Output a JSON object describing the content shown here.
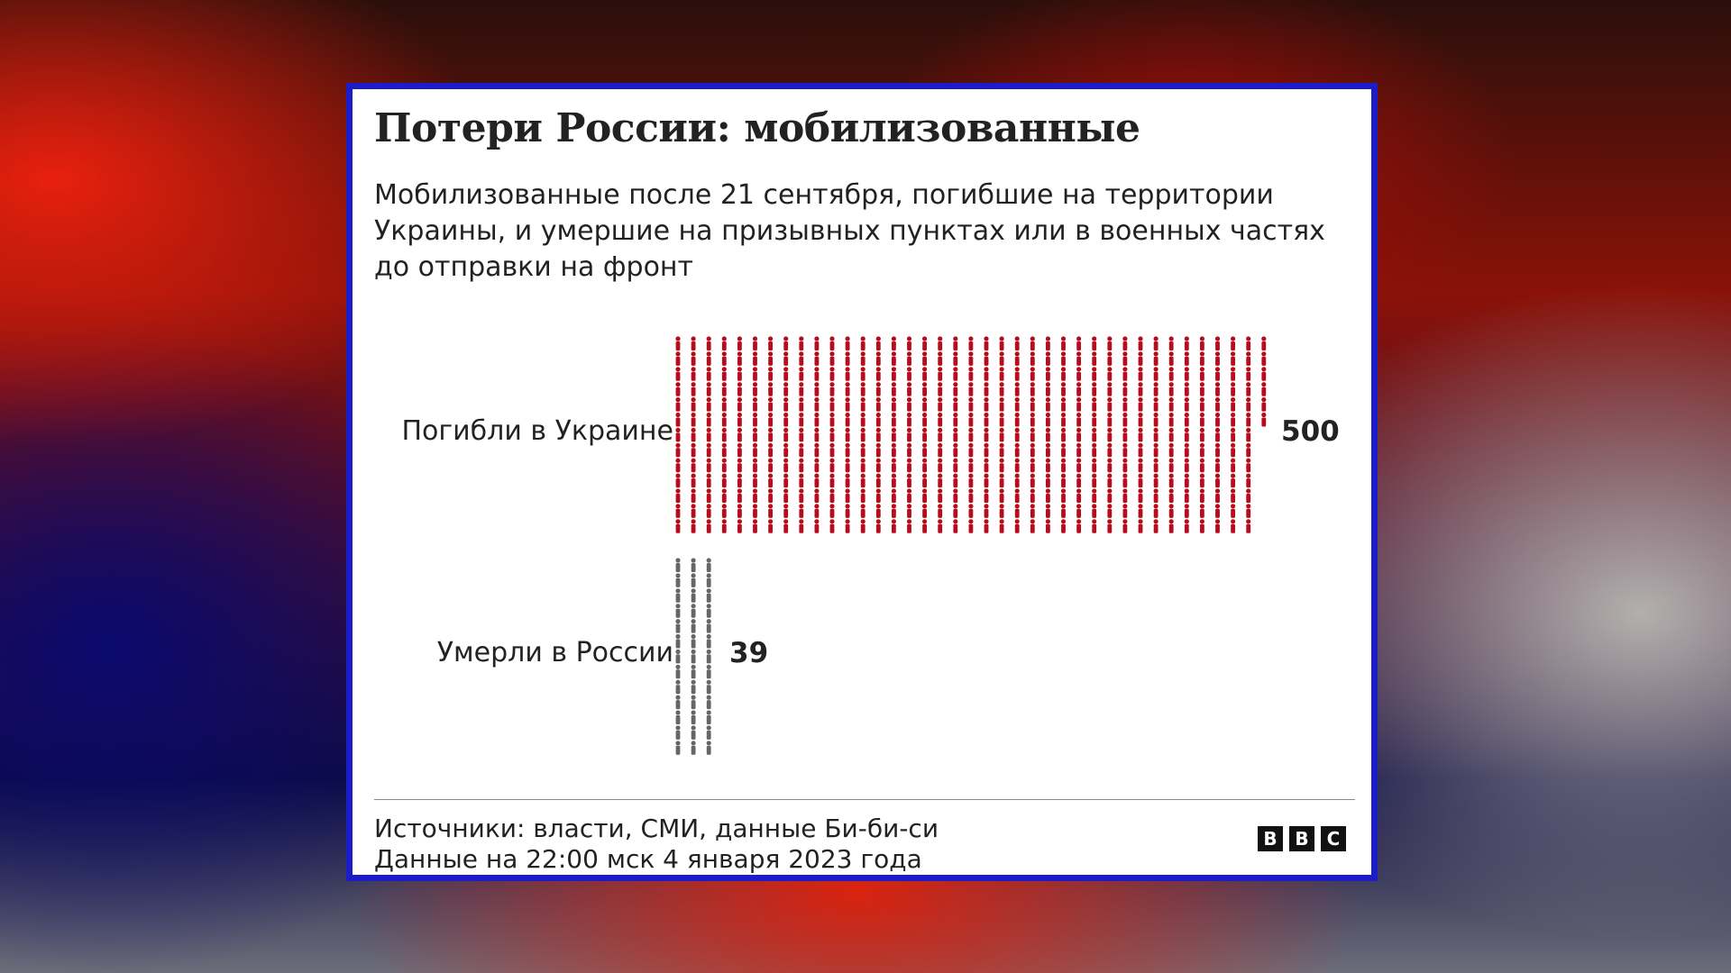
{
  "title": "Потери России: мобилизованные",
  "subtitle": "Мобилизованные после 21 сентября, погибшие на территории Украины, и умершие на призывных пунктах или в военных частях до отправки на фронт",
  "chart_data": {
    "type": "bar",
    "categories": [
      "Погибли в Украине",
      "Умерли в России"
    ],
    "values": [
      500,
      39
    ],
    "value_labels": [
      "500",
      "39"
    ],
    "colors": [
      "#b80c1c",
      "#666666"
    ],
    "unit_per_icon": 1
  },
  "footer": {
    "sources": "Источники: власти, СМИ, данные Би-би-си",
    "date": "Данные на 22:00 мск 4 января 2023 года"
  },
  "logo": {
    "letters": [
      "B",
      "B",
      "C"
    ]
  }
}
